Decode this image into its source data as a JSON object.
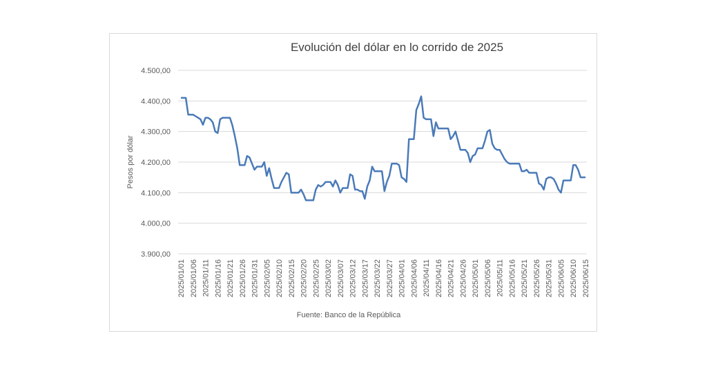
{
  "chart_data": {
    "type": "line",
    "title": "Evolución del dólar en lo corrido de 2025",
    "y_label": "Pesos por dólar",
    "source": "Fuente:  Banco de la República",
    "color": "#4a7ab8",
    "grid": true,
    "ylim": [
      3900,
      4500
    ],
    "yticks": [
      {
        "value": 3900,
        "label": "3.900,00"
      },
      {
        "value": 4000,
        "label": "4.000,00"
      },
      {
        "value": 4100,
        "label": "4.100,00"
      },
      {
        "value": 4200,
        "label": "4.200,00"
      },
      {
        "value": 4300,
        "label": "4.300,00"
      },
      {
        "value": 4400,
        "label": "4.400,00"
      },
      {
        "value": 4500,
        "label": "4.500,00"
      }
    ],
    "categories": [
      "2025/01/01",
      null,
      null,
      null,
      null,
      "2025/01/06",
      null,
      null,
      null,
      null,
      "2025/01/11",
      null,
      null,
      null,
      null,
      "2025/01/16",
      null,
      null,
      null,
      null,
      "2025/01/21",
      null,
      null,
      null,
      null,
      "2025/01/26",
      null,
      null,
      null,
      null,
      "2025/01/31",
      null,
      null,
      null,
      null,
      "2025/02/05",
      null,
      null,
      null,
      null,
      "2025/02/10",
      null,
      null,
      null,
      null,
      "2025/02/15",
      null,
      null,
      null,
      null,
      "2025/02/20",
      null,
      null,
      null,
      null,
      "2025/02/25",
      null,
      null,
      null,
      null,
      "2025/03/02",
      null,
      null,
      null,
      null,
      "2025/03/07",
      null,
      null,
      null,
      null,
      "2025/03/12",
      null,
      null,
      null,
      null,
      "2025/03/17",
      null,
      null,
      null,
      null,
      "2025/03/22",
      null,
      null,
      null,
      null,
      "2025/03/27",
      null,
      null,
      null,
      null,
      "2025/04/01",
      null,
      null,
      null,
      null,
      "2025/04/06",
      null,
      null,
      null,
      null,
      "2025/04/11",
      null,
      null,
      null,
      null,
      "2025/04/16",
      null,
      null,
      null,
      null,
      "2025/04/21",
      null,
      null,
      null,
      null,
      "2025/04/26",
      null,
      null,
      null,
      null,
      "2025/05/01",
      null,
      null,
      null,
      null,
      "2025/05/06",
      null,
      null,
      null,
      null,
      "2025/05/11",
      null,
      null,
      null,
      null,
      "2025/05/16",
      null,
      null,
      null,
      null,
      "2025/05/21",
      null,
      null,
      null,
      null,
      "2025/05/26",
      null,
      null,
      null,
      null,
      "2025/05/31",
      null,
      null,
      null,
      null,
      "2025/06/05",
      null,
      null,
      null,
      null,
      "2025/06/10",
      null,
      null,
      null,
      null,
      "2025/06/15"
    ],
    "values": [
      4410,
      4410,
      4410,
      4355,
      4355,
      4355,
      4350,
      4345,
      4340,
      4322,
      4345,
      4345,
      4340,
      4330,
      4300,
      4295,
      4340,
      4345,
      4345,
      4345,
      4345,
      4320,
      4285,
      4245,
      4190,
      4190,
      4190,
      4220,
      4215,
      4195,
      4175,
      4185,
      4185,
      4185,
      4200,
      4155,
      4180,
      4145,
      4115,
      4115,
      4115,
      4135,
      4150,
      4165,
      4160,
      4100,
      4100,
      4100,
      4100,
      4110,
      4095,
      4075,
      4075,
      4075,
      4075,
      4110,
      4125,
      4120,
      4125,
      4135,
      4135,
      4135,
      4120,
      4140,
      4125,
      4100,
      4115,
      4115,
      4115,
      4160,
      4155,
      4110,
      4110,
      4105,
      4105,
      4080,
      4120,
      4140,
      4185,
      4170,
      4170,
      4170,
      4170,
      4105,
      4135,
      4155,
      4195,
      4195,
      4195,
      4190,
      4150,
      4145,
      4135,
      4275,
      4275,
      4275,
      4370,
      4390,
      4415,
      4345,
      4340,
      4340,
      4340,
      4285,
      4330,
      4310,
      4310,
      4310,
      4310,
      4310,
      4275,
      4285,
      4300,
      4270,
      4240,
      4240,
      4240,
      4230,
      4200,
      4220,
      4225,
      4245,
      4245,
      4245,
      4270,
      4300,
      4305,
      4260,
      4245,
      4240,
      4240,
      4225,
      4210,
      4200,
      4195,
      4195,
      4195,
      4195,
      4195,
      4170,
      4170,
      4175,
      4165,
      4165,
      4165,
      4165,
      4130,
      4125,
      4110,
      4145,
      4150,
      4150,
      4145,
      4130,
      4110,
      4100,
      4140,
      4140,
      4140,
      4140,
      4190,
      4190,
      4175,
      4150,
      4150,
      4150
    ]
  }
}
